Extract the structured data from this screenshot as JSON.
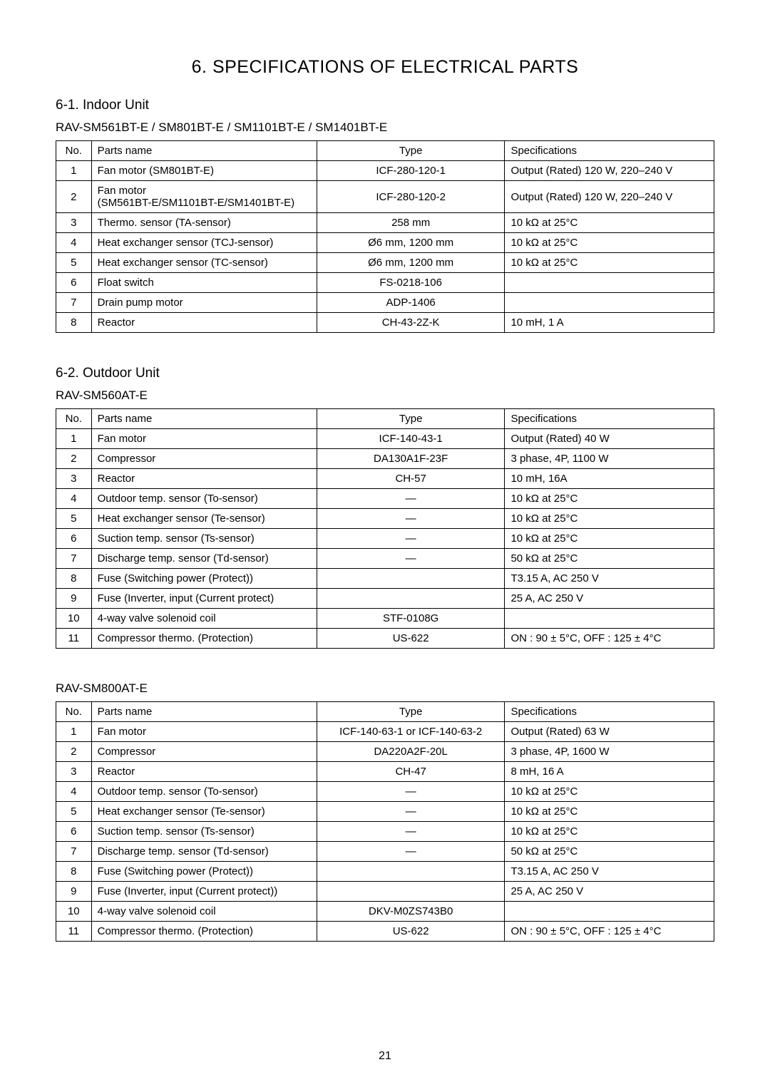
{
  "page": {
    "title": "6. SPECIFICATIONS OF ELECTRICAL PARTS",
    "number": "21"
  },
  "headers": {
    "no": "No.",
    "parts": "Parts name",
    "type": "Type",
    "spec": "Specifications"
  },
  "section1": {
    "heading": "6-1. Indoor Unit",
    "subheading": "RAV-SM561BT-E / SM801BT-E / SM1101BT-E / SM1401BT-E",
    "rows": [
      {
        "no": "1",
        "parts": "Fan motor (SM801BT-E)",
        "type": "ICF-280-120-1",
        "spec": "Output (Rated) 120 W, 220–240 V"
      },
      {
        "no": "2",
        "parts": "Fan motor\n(SM561BT-E/SM1101BT-E/SM1401BT-E)",
        "type": "ICF-280-120-2",
        "spec": "Output (Rated) 120 W, 220–240 V"
      },
      {
        "no": "3",
        "parts": "Thermo. sensor (TA-sensor)",
        "type": "258 mm",
        "spec": "10 kΩ at 25°C"
      },
      {
        "no": "4",
        "parts": "Heat exchanger sensor (TCJ-sensor)",
        "type": "Ø6 mm, 1200 mm",
        "spec": "10 kΩ at 25°C"
      },
      {
        "no": "5",
        "parts": "Heat exchanger sensor (TC-sensor)",
        "type": "Ø6 mm, 1200 mm",
        "spec": "10 kΩ at 25°C"
      },
      {
        "no": "6",
        "parts": "Float switch",
        "type": "FS-0218-106",
        "spec": ""
      },
      {
        "no": "7",
        "parts": "Drain pump motor",
        "type": "ADP-1406",
        "spec": ""
      },
      {
        "no": "8",
        "parts": "Reactor",
        "type": "CH-43-2Z-K",
        "spec": "10 mH,  1 A"
      }
    ]
  },
  "section2": {
    "heading": "6-2. Outdoor Unit",
    "sub1": {
      "subheading": "RAV-SM560AT-E",
      "rows": [
        {
          "no": "1",
          "parts": "Fan motor",
          "type": "ICF-140-43-1",
          "spec": "Output (Rated) 40 W"
        },
        {
          "no": "2",
          "parts": "Compressor",
          "type": "DA130A1F-23F",
          "spec": "3 phase, 4P, 1100 W"
        },
        {
          "no": "3",
          "parts": "Reactor",
          "type": "CH-57",
          "spec": "10 mH, 16A"
        },
        {
          "no": "4",
          "parts": "Outdoor temp. sensor (To-sensor)",
          "type": "—",
          "spec": "10 kΩ at 25°C"
        },
        {
          "no": "5",
          "parts": "Heat exchanger sensor (Te-sensor)",
          "type": "—",
          "spec": "10 kΩ at 25°C"
        },
        {
          "no": "6",
          "parts": "Suction temp. sensor (Ts-sensor)",
          "type": "—",
          "spec": "10 kΩ at 25°C"
        },
        {
          "no": "7",
          "parts": "Discharge temp. sensor (Td-sensor)",
          "type": "—",
          "spec": "50 kΩ at 25°C"
        },
        {
          "no": "8",
          "parts": "Fuse (Switching power (Protect))",
          "type": "",
          "spec": "T3.15 A, AC 250 V"
        },
        {
          "no": "9",
          "parts": "Fuse (Inverter, input (Current protect)",
          "type": "",
          "spec": "25 A, AC 250 V"
        },
        {
          "no": "10",
          "parts": "4-way valve solenoid coil",
          "type": "STF-0108G",
          "spec": ""
        },
        {
          "no": "11",
          "parts": "Compressor thermo. (Protection)",
          "type": "US-622",
          "spec": "ON : 90 ± 5°C, OFF : 125 ± 4°C"
        }
      ]
    },
    "sub2": {
      "subheading": "RAV-SM800AT-E",
      "rows": [
        {
          "no": "1",
          "parts": "Fan motor",
          "type": "ICF-140-63-1 or ICF-140-63-2",
          "spec": "Output (Rated) 63 W"
        },
        {
          "no": "2",
          "parts": "Compressor",
          "type": "DA220A2F-20L",
          "spec": "3 phase, 4P, 1600 W"
        },
        {
          "no": "3",
          "parts": "Reactor",
          "type": "CH-47",
          "spec": "8 mH,  16 A"
        },
        {
          "no": "4",
          "parts": "Outdoor temp. sensor (To-sensor)",
          "type": "—",
          "spec": "10 kΩ at 25°C"
        },
        {
          "no": "5",
          "parts": "Heat exchanger sensor (Te-sensor)",
          "type": "—",
          "spec": "10 kΩ at 25°C"
        },
        {
          "no": "6",
          "parts": "Suction temp. sensor (Ts-sensor)",
          "type": "—",
          "spec": "10 kΩ at 25°C"
        },
        {
          "no": "7",
          "parts": "Discharge temp. sensor (Td-sensor)",
          "type": "—",
          "spec": "50 kΩ at 25°C"
        },
        {
          "no": "8",
          "parts": "Fuse (Switching power (Protect))",
          "type": "",
          "spec": "T3.15 A, AC 250 V"
        },
        {
          "no": "9",
          "parts": "Fuse (Inverter, input (Current protect))",
          "type": "",
          "spec": "25 A, AC 250 V"
        },
        {
          "no": "10",
          "parts": "4-way valve solenoid coil",
          "type": "DKV-M0ZS743B0",
          "spec": ""
        },
        {
          "no": "11",
          "parts": "Compressor thermo. (Protection)",
          "type": "US-622",
          "spec": "ON : 90 ± 5°C, OFF : 125 ± 4°C"
        }
      ]
    }
  }
}
